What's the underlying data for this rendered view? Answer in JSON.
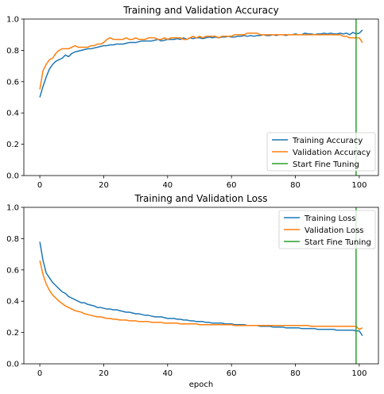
{
  "chart_data": [
    {
      "type": "line",
      "title": "Training and Validation Accuracy",
      "xlabel": "",
      "ylabel": "",
      "xlim": [
        -5,
        106
      ],
      "ylim": [
        0,
        1.0
      ],
      "xticks": [
        0,
        20,
        40,
        60,
        80,
        100
      ],
      "yticks": [
        0.0,
        0.2,
        0.4,
        0.6,
        0.8,
        1.0
      ],
      "ytick_labels": [
        "0.0",
        "0.2",
        "0.4",
        "0.6",
        "0.8",
        "1.0"
      ],
      "legend": "lower-right",
      "grid": false,
      "x": [
        0,
        1,
        2,
        3,
        4,
        5,
        6,
        7,
        8,
        9,
        10,
        11,
        12,
        13,
        14,
        15,
        16,
        17,
        18,
        19,
        20,
        21,
        22,
        23,
        24,
        25,
        26,
        27,
        28,
        29,
        30,
        31,
        32,
        33,
        34,
        35,
        36,
        37,
        38,
        39,
        40,
        41,
        42,
        43,
        44,
        45,
        46,
        47,
        48,
        49,
        50,
        51,
        52,
        53,
        54,
        55,
        56,
        57,
        58,
        59,
        60,
        61,
        62,
        63,
        64,
        65,
        66,
        67,
        68,
        69,
        70,
        71,
        72,
        73,
        74,
        75,
        76,
        77,
        78,
        79,
        80,
        81,
        82,
        83,
        84,
        85,
        86,
        87,
        88,
        89,
        90,
        91,
        92,
        93,
        94,
        95,
        96,
        97,
        98,
        99,
        100,
        101
      ],
      "series": [
        {
          "name": "Training Accuracy",
          "color": "#1f77b4",
          "values": [
            0.5,
            0.57,
            0.63,
            0.68,
            0.71,
            0.73,
            0.74,
            0.75,
            0.77,
            0.76,
            0.78,
            0.79,
            0.795,
            0.8,
            0.805,
            0.81,
            0.81,
            0.815,
            0.82,
            0.825,
            0.83,
            0.83,
            0.835,
            0.835,
            0.84,
            0.84,
            0.84,
            0.845,
            0.85,
            0.85,
            0.85,
            0.855,
            0.86,
            0.86,
            0.86,
            0.86,
            0.865,
            0.87,
            0.86,
            0.865,
            0.87,
            0.87,
            0.87,
            0.875,
            0.87,
            0.88,
            0.87,
            0.88,
            0.875,
            0.88,
            0.88,
            0.875,
            0.88,
            0.885,
            0.88,
            0.885,
            0.88,
            0.885,
            0.885,
            0.89,
            0.885,
            0.885,
            0.89,
            0.89,
            0.895,
            0.89,
            0.895,
            0.89,
            0.895,
            0.895,
            0.9,
            0.895,
            0.895,
            0.9,
            0.895,
            0.9,
            0.9,
            0.895,
            0.9,
            0.9,
            0.905,
            0.9,
            0.9,
            0.91,
            0.905,
            0.905,
            0.9,
            0.905,
            0.905,
            0.91,
            0.905,
            0.91,
            0.905,
            0.905,
            0.91,
            0.905,
            0.91,
            0.9,
            0.915,
            0.905,
            0.91,
            0.93
          ]
        },
        {
          "name": "Validation Accuracy",
          "color": "#ff7f0e",
          "values": [
            0.55,
            0.67,
            0.71,
            0.74,
            0.75,
            0.78,
            0.8,
            0.81,
            0.81,
            0.81,
            0.82,
            0.83,
            0.82,
            0.82,
            0.82,
            0.82,
            0.83,
            0.83,
            0.84,
            0.84,
            0.85,
            0.87,
            0.88,
            0.87,
            0.87,
            0.87,
            0.87,
            0.88,
            0.87,
            0.87,
            0.88,
            0.87,
            0.87,
            0.87,
            0.88,
            0.88,
            0.88,
            0.87,
            0.87,
            0.88,
            0.87,
            0.88,
            0.88,
            0.88,
            0.88,
            0.87,
            0.87,
            0.88,
            0.89,
            0.88,
            0.89,
            0.88,
            0.89,
            0.89,
            0.89,
            0.89,
            0.88,
            0.89,
            0.89,
            0.89,
            0.89,
            0.9,
            0.9,
            0.9,
            0.9,
            0.91,
            0.91,
            0.91,
            0.91,
            0.9,
            0.9,
            0.9,
            0.9,
            0.9,
            0.9,
            0.9,
            0.9,
            0.9,
            0.9,
            0.9,
            0.9,
            0.9,
            0.9,
            0.9,
            0.9,
            0.9,
            0.9,
            0.9,
            0.9,
            0.9,
            0.9,
            0.9,
            0.9,
            0.9,
            0.9,
            0.89,
            0.89,
            0.88,
            0.88,
            0.88,
            0.88,
            0.85
          ]
        }
      ],
      "vline": {
        "name": "Start Fine Tuning",
        "x": 99,
        "color": "#2ca02c"
      }
    },
    {
      "type": "line",
      "title": "Training and Validation Loss",
      "xlabel": "epoch",
      "ylabel": "",
      "xlim": [
        -5,
        106
      ],
      "ylim": [
        0,
        1.0
      ],
      "xticks": [
        0,
        20,
        40,
        60,
        80,
        100
      ],
      "yticks": [
        0.0,
        0.2,
        0.4,
        0.6,
        0.8,
        1.0
      ],
      "ytick_labels": [
        "0.0",
        "0.2",
        "0.4",
        "0.6",
        "0.8",
        "1.0"
      ],
      "legend": "upper-right",
      "grid": false,
      "x": [
        0,
        1,
        2,
        3,
        4,
        5,
        6,
        7,
        8,
        9,
        10,
        11,
        12,
        13,
        14,
        15,
        16,
        17,
        18,
        19,
        20,
        21,
        22,
        23,
        24,
        25,
        26,
        27,
        28,
        29,
        30,
        31,
        32,
        33,
        34,
        35,
        36,
        37,
        38,
        39,
        40,
        41,
        42,
        43,
        44,
        45,
        46,
        47,
        48,
        49,
        50,
        51,
        52,
        53,
        54,
        55,
        56,
        57,
        58,
        59,
        60,
        61,
        62,
        63,
        64,
        65,
        66,
        67,
        68,
        69,
        70,
        71,
        72,
        73,
        74,
        75,
        76,
        77,
        78,
        79,
        80,
        81,
        82,
        83,
        84,
        85,
        86,
        87,
        88,
        89,
        90,
        91,
        92,
        93,
        94,
        95,
        96,
        97,
        98,
        99,
        100,
        101
      ],
      "series": [
        {
          "name": "Training Loss",
          "color": "#1f77b4",
          "values": [
            0.78,
            0.66,
            0.58,
            0.55,
            0.52,
            0.5,
            0.48,
            0.46,
            0.45,
            0.43,
            0.42,
            0.41,
            0.4,
            0.39,
            0.39,
            0.38,
            0.375,
            0.37,
            0.36,
            0.36,
            0.355,
            0.35,
            0.35,
            0.345,
            0.345,
            0.34,
            0.335,
            0.33,
            0.33,
            0.325,
            0.32,
            0.32,
            0.315,
            0.31,
            0.31,
            0.305,
            0.3,
            0.3,
            0.3,
            0.295,
            0.29,
            0.29,
            0.29,
            0.285,
            0.285,
            0.28,
            0.28,
            0.275,
            0.275,
            0.27,
            0.27,
            0.27,
            0.265,
            0.265,
            0.26,
            0.26,
            0.26,
            0.26,
            0.255,
            0.255,
            0.255,
            0.25,
            0.25,
            0.25,
            0.25,
            0.245,
            0.245,
            0.245,
            0.245,
            0.24,
            0.24,
            0.24,
            0.24,
            0.235,
            0.235,
            0.235,
            0.235,
            0.23,
            0.23,
            0.23,
            0.23,
            0.23,
            0.225,
            0.225,
            0.225,
            0.225,
            0.225,
            0.22,
            0.22,
            0.22,
            0.22,
            0.22,
            0.22,
            0.215,
            0.215,
            0.215,
            0.215,
            0.215,
            0.215,
            0.21,
            0.21,
            0.18
          ]
        },
        {
          "name": "Validation Loss",
          "color": "#ff7f0e",
          "values": [
            0.66,
            0.57,
            0.51,
            0.47,
            0.44,
            0.42,
            0.4,
            0.385,
            0.37,
            0.36,
            0.35,
            0.34,
            0.335,
            0.33,
            0.32,
            0.315,
            0.31,
            0.305,
            0.3,
            0.3,
            0.295,
            0.29,
            0.29,
            0.285,
            0.285,
            0.28,
            0.28,
            0.28,
            0.275,
            0.275,
            0.275,
            0.27,
            0.27,
            0.27,
            0.27,
            0.265,
            0.265,
            0.265,
            0.265,
            0.26,
            0.26,
            0.26,
            0.26,
            0.26,
            0.255,
            0.255,
            0.255,
            0.255,
            0.255,
            0.255,
            0.25,
            0.25,
            0.25,
            0.25,
            0.25,
            0.25,
            0.25,
            0.25,
            0.25,
            0.25,
            0.25,
            0.245,
            0.245,
            0.245,
            0.245,
            0.245,
            0.245,
            0.245,
            0.245,
            0.245,
            0.245,
            0.245,
            0.245,
            0.245,
            0.245,
            0.245,
            0.245,
            0.245,
            0.245,
            0.245,
            0.245,
            0.245,
            0.245,
            0.245,
            0.245,
            0.24,
            0.24,
            0.24,
            0.24,
            0.24,
            0.24,
            0.24,
            0.24,
            0.24,
            0.24,
            0.24,
            0.24,
            0.24,
            0.24,
            0.24,
            0.22,
            0.23
          ]
        }
      ],
      "vline": {
        "name": "Start Fine Tuning",
        "x": 99,
        "color": "#2ca02c"
      }
    }
  ]
}
